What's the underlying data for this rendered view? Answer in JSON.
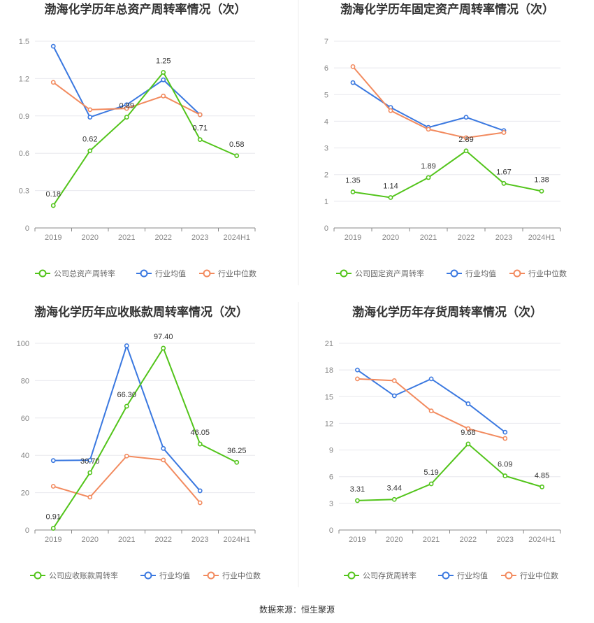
{
  "source": "数据来源：恒生聚源",
  "colors": {
    "company": "#52c41a",
    "avg": "#3a78e0",
    "median": "#f28a5e",
    "grid": "#e8e8ee",
    "axis": "#888888"
  },
  "chart_data": [
    {
      "type": "line",
      "title": "渤海化学历年总资产周转率情况（次）",
      "categories": [
        "2019",
        "2020",
        "2021",
        "2022",
        "2023",
        "2024H1"
      ],
      "yticks": [
        "0",
        "0.3",
        "0.6",
        "0.9",
        "1.2",
        "1.5"
      ],
      "ylim": [
        0,
        1.5
      ],
      "legend_position": "bottom",
      "series": [
        {
          "name": "公司总资产周转率",
          "values": [
            0.18,
            0.62,
            0.89,
            1.25,
            0.71,
            0.58
          ],
          "labels": [
            "0.18",
            "0.62",
            "0.89",
            "1.25",
            "0.71",
            "0.58"
          ]
        },
        {
          "name": "行业均值",
          "values": [
            1.46,
            0.89,
            0.99,
            1.19,
            0.91,
            null
          ]
        },
        {
          "name": "行业中位数",
          "values": [
            1.17,
            0.95,
            0.96,
            1.06,
            0.91,
            null
          ]
        }
      ]
    },
    {
      "type": "line",
      "title": "渤海化学历年固定资产周转率情况（次）",
      "categories": [
        "2019",
        "2020",
        "2021",
        "2022",
        "2023",
        "2024H1"
      ],
      "yticks": [
        "0",
        "1",
        "2",
        "3",
        "4",
        "5",
        "6",
        "7"
      ],
      "ylim": [
        0,
        7
      ],
      "legend_position": "bottom",
      "series": [
        {
          "name": "公司固定资产周转率",
          "values": [
            1.35,
            1.14,
            1.89,
            2.89,
            1.67,
            1.38
          ],
          "labels": [
            "1.35",
            "1.14",
            "1.89",
            "2.89",
            "1.67",
            "1.38"
          ]
        },
        {
          "name": "行业均值",
          "values": [
            5.45,
            4.52,
            3.77,
            4.15,
            3.65,
            null
          ]
        },
        {
          "name": "行业中位数",
          "values": [
            6.05,
            4.4,
            3.7,
            3.38,
            3.58,
            null
          ]
        }
      ]
    },
    {
      "type": "line",
      "title": "渤海化学历年应收账款周转率情况（次）",
      "categories": [
        "2019",
        "2020",
        "2021",
        "2022",
        "2023",
        "2024H1"
      ],
      "yticks": [
        "0",
        "20",
        "40",
        "60",
        "80",
        "100"
      ],
      "ylim": [
        0,
        100
      ],
      "legend_position": "bottom",
      "series": [
        {
          "name": "公司应收账款周转率",
          "values": [
            0.91,
            30.7,
            66.3,
            97.4,
            46.05,
            36.25
          ],
          "labels": [
            "0.91",
            "30.70",
            "66.30",
            "97.40",
            "46.05",
            "36.25"
          ]
        },
        {
          "name": "行业均值",
          "values": [
            37.2,
            37.4,
            98.7,
            43.7,
            21.0,
            null
          ]
        },
        {
          "name": "行业中位数",
          "values": [
            23.4,
            17.6,
            39.6,
            37.5,
            14.6,
            null
          ]
        }
      ]
    },
    {
      "type": "line",
      "title": "渤海化学历年存货周转率情况（次）",
      "categories": [
        "2019",
        "2020",
        "2021",
        "2022",
        "2023",
        "2024H1"
      ],
      "yticks": [
        "0",
        "3",
        "6",
        "9",
        "12",
        "15",
        "18",
        "21"
      ],
      "ylim": [
        0,
        21
      ],
      "legend_position": "bottom",
      "series": [
        {
          "name": "公司存货周转率",
          "values": [
            3.31,
            3.44,
            5.19,
            9.68,
            6.09,
            4.85
          ],
          "labels": [
            "3.31",
            "3.44",
            "5.19",
            "9.68",
            "6.09",
            "4.85"
          ]
        },
        {
          "name": "行业均值",
          "values": [
            18.0,
            15.1,
            17.0,
            14.2,
            11.0,
            null
          ]
        },
        {
          "name": "行业中位数",
          "values": [
            17.0,
            16.8,
            13.4,
            11.4,
            10.3,
            null
          ]
        }
      ]
    }
  ]
}
